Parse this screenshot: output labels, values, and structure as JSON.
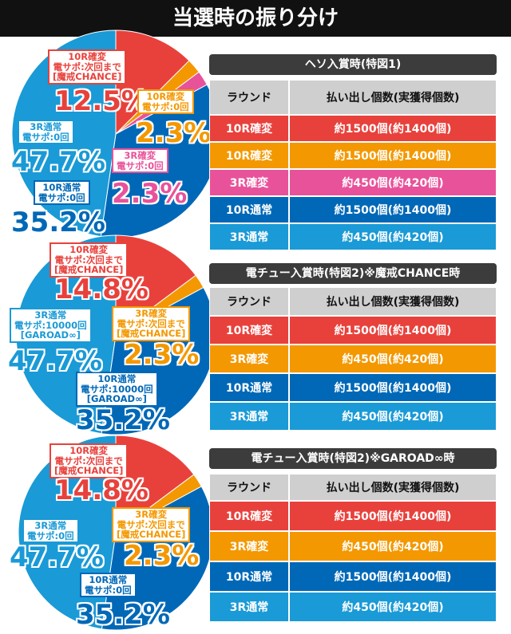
{
  "title": "当選時の振り分け",
  "chart_data": [
    {
      "type": "pie",
      "categories": [
        "10R確変\n電サポ:次回まで\n[魔戒CHANCE]",
        "10R確変\n電サポ:0回",
        "3R確変\n電サポ:0回",
        "10R通常\n電サポ:0回",
        "3R通常\n電サポ:0回"
      ],
      "values": [
        12.5,
        2.3,
        2.3,
        35.2,
        47.7
      ],
      "value_labels": [
        "12.5%",
        "2.3%",
        "2.3%",
        "35.2%",
        "47.7%"
      ],
      "colors": [
        "#e8413c",
        "#f39800",
        "#e8529a",
        "#0068b7",
        "#1a9ad6"
      ]
    },
    {
      "type": "pie",
      "categories": [
        "10R確変\n電サポ:次回まで\n[魔戒CHANCE]",
        "3R確変\n電サポ:次回まで\n[魔戒CHANCE]",
        "10R通常\n電サポ:10000回\n[GAROAD∞]",
        "3R通常\n電サポ:10000回\n[GAROAD∞]"
      ],
      "values": [
        14.8,
        2.3,
        35.2,
        47.7
      ],
      "value_labels": [
        "14.8%",
        "2.3%",
        "35.2%",
        "47.7%"
      ],
      "colors": [
        "#e8413c",
        "#f39800",
        "#0068b7",
        "#1a9ad6"
      ]
    },
    {
      "type": "pie",
      "categories": [
        "10R確変\n電サポ:次回まで\n[魔戒CHANCE]",
        "3R確変\n電サポ:次回まで\n[魔戒CHANCE]",
        "10R通常\n電サポ:0回",
        "3R通常\n電サポ:0回"
      ],
      "values": [
        14.8,
        2.3,
        35.2,
        47.7
      ],
      "value_labels": [
        "14.8%",
        "2.3%",
        "35.2%",
        "47.7%"
      ],
      "colors": [
        "#e8413c",
        "#f39800",
        "#0068b7",
        "#1a9ad6"
      ]
    }
  ],
  "tables": [
    {
      "title": "ヘソ入賞時(特図1)",
      "header": [
        "ラウンド",
        "払い出し個数(実獲得個数)"
      ],
      "rows": [
        [
          "10R確変",
          "約1500個(約1400個)"
        ],
        [
          "10R確変",
          "約1500個(約1400個)"
        ],
        [
          "3R確変",
          "約450個(約420個)"
        ],
        [
          "10R通常",
          "約1500個(約1400個)"
        ],
        [
          "3R通常",
          "約450個(約420個)"
        ]
      ],
      "row_colors": [
        "#e8413c",
        "#f39800",
        "#e8529a",
        "#0068b7",
        "#1a9ad6"
      ]
    },
    {
      "title": "電チュー入賞時(特図2)※魔戒CHANCE時",
      "header": [
        "ラウンド",
        "払い出し個数(実獲得個数)"
      ],
      "rows": [
        [
          "10R確変",
          "約1500個(約1400個)"
        ],
        [
          "3R確変",
          "約450個(約420個)"
        ],
        [
          "10R通常",
          "約1500個(約1400個)"
        ],
        [
          "3R通常",
          "約450個(約420個)"
        ]
      ],
      "row_colors": [
        "#e8413c",
        "#f39800",
        "#0068b7",
        "#1a9ad6"
      ]
    },
    {
      "title": "電チュー入賞時(特図2)※GAROAD∞時",
      "header": [
        "ラウンド",
        "払い出し個数(実獲得個数)"
      ],
      "rows": [
        [
          "10R確変",
          "約1500個(約1400個)"
        ],
        [
          "3R確変",
          "約450個(約420個)"
        ],
        [
          "10R通常",
          "約1500個(約1400個)"
        ],
        [
          "3R通常",
          "約450個(約420個)"
        ]
      ],
      "row_colors": [
        "#e8413c",
        "#f39800",
        "#0068b7",
        "#1a9ad6"
      ]
    }
  ]
}
